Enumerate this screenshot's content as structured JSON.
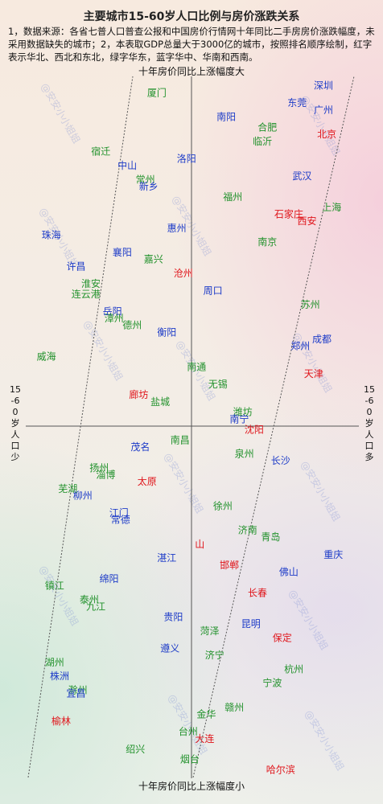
{
  "title": "主要城市15-60岁人口比例与房价涨跌关系",
  "note": "1，数据来源：各省七普人口普查公报和中国房价行情网十年同比二手房房价涨跌幅度，未采用数据缺失的城市；2，本表取GDP总量大于3000亿的城市，按照排名顺序绘制，红字表示华北、西北和东北，绿字华东，蓝字华中、华南和西南。",
  "watermark": "@安安小小姐姐",
  "colors": {
    "north": "#e0151b",
    "east": "#23922d",
    "central_south_west": "#1e3cc8",
    "axis": "#555555"
  },
  "chart_data": {
    "type": "scatter",
    "title": "主要城市15-60岁人口比例与房价涨跌关系",
    "xlabel_left": "15-60岁人口少",
    "xlabel_right": "15-60岁人口多",
    "ylabel_top": "十年房价同比上涨幅度大",
    "ylabel_bottom": "十年房价同比上涨幅度小",
    "axis_ticks": "none",
    "grid": false,
    "x_range": [
      -1,
      1
    ],
    "y_range": [
      -1,
      1
    ],
    "groups": {
      "north": "华北、西北和东北",
      "east": "华东",
      "central_south_west": "华中、华南和西南"
    },
    "points": [
      {
        "city": "深圳",
        "group": "central_south_west",
        "x": 0.8,
        "y": 0.98
      },
      {
        "city": "厦门",
        "group": "east",
        "x": -0.21,
        "y": 0.96
      },
      {
        "city": "东莞",
        "group": "central_south_west",
        "x": 0.64,
        "y": 0.93
      },
      {
        "city": "广州",
        "group": "central_south_west",
        "x": 0.8,
        "y": 0.91
      },
      {
        "city": "南阳",
        "group": "central_south_west",
        "x": 0.21,
        "y": 0.89
      },
      {
        "city": "合肥",
        "group": "east",
        "x": 0.46,
        "y": 0.86
      },
      {
        "city": "北京",
        "group": "north",
        "x": 0.82,
        "y": 0.84
      },
      {
        "city": "临沂",
        "group": "east",
        "x": 0.43,
        "y": 0.82
      },
      {
        "city": "宿迁",
        "group": "east",
        "x": -0.55,
        "y": 0.79
      },
      {
        "city": "洛阳",
        "group": "central_south_west",
        "x": -0.03,
        "y": 0.77
      },
      {
        "city": "中山",
        "group": "central_south_west",
        "x": -0.39,
        "y": 0.75
      },
      {
        "city": "武汉",
        "group": "central_south_west",
        "x": 0.67,
        "y": 0.72
      },
      {
        "city": "常州",
        "group": "east",
        "x": -0.28,
        "y": 0.71
      },
      {
        "city": "新乡",
        "group": "central_south_west",
        "x": -0.26,
        "y": 0.69
      },
      {
        "city": "福州",
        "group": "east",
        "x": 0.25,
        "y": 0.66
      },
      {
        "city": "上海",
        "group": "east",
        "x": 0.85,
        "y": 0.63
      },
      {
        "city": "石家庄",
        "group": "north",
        "x": 0.59,
        "y": 0.61
      },
      {
        "city": "西安",
        "group": "north",
        "x": 0.7,
        "y": 0.59
      },
      {
        "city": "惠州",
        "group": "central_south_west",
        "x": -0.09,
        "y": 0.57
      },
      {
        "city": "珠海",
        "group": "central_south_west",
        "x": -0.85,
        "y": 0.55
      },
      {
        "city": "南京",
        "group": "east",
        "x": 0.46,
        "y": 0.53
      },
      {
        "city": "襄阳",
        "group": "central_south_west",
        "x": -0.42,
        "y": 0.5
      },
      {
        "city": "嘉兴",
        "group": "east",
        "x": -0.23,
        "y": 0.48
      },
      {
        "city": "许昌",
        "group": "central_south_west",
        "x": -0.7,
        "y": 0.46
      },
      {
        "city": "沧州",
        "group": "north",
        "x": -0.05,
        "y": 0.44
      },
      {
        "city": "淮安",
        "group": "east",
        "x": -0.61,
        "y": 0.41
      },
      {
        "city": "周口",
        "group": "central_south_west",
        "x": 0.13,
        "y": 0.39
      },
      {
        "city": "连云港",
        "group": "east",
        "x": -0.64,
        "y": 0.38
      },
      {
        "city": "苏州",
        "group": "east",
        "x": 0.72,
        "y": 0.35
      },
      {
        "city": "岳阳",
        "group": "central_south_west",
        "x": -0.48,
        "y": 0.33
      },
      {
        "city": "漳州",
        "group": "east",
        "x": -0.47,
        "y": 0.31
      },
      {
        "city": "德州",
        "group": "east",
        "x": -0.36,
        "y": 0.29
      },
      {
        "city": "衡阳",
        "group": "central_south_west",
        "x": -0.15,
        "y": 0.27
      },
      {
        "city": "成都",
        "group": "central_south_west",
        "x": 0.79,
        "y": 0.25
      },
      {
        "city": "郑州",
        "group": "central_south_west",
        "x": 0.66,
        "y": 0.23
      },
      {
        "city": "威海",
        "group": "east",
        "x": -0.88,
        "y": 0.2
      },
      {
        "city": "南通",
        "group": "east",
        "x": 0.03,
        "y": 0.17
      },
      {
        "city": "天津",
        "group": "north",
        "x": 0.74,
        "y": 0.15
      },
      {
        "city": "无锡",
        "group": "east",
        "x": 0.16,
        "y": 0.12
      },
      {
        "city": "廊坊",
        "group": "north",
        "x": -0.32,
        "y": 0.09
      },
      {
        "city": "盐城",
        "group": "east",
        "x": -0.19,
        "y": 0.07
      },
      {
        "city": "潍坊",
        "group": "east",
        "x": 0.31,
        "y": 0.04
      },
      {
        "city": "南宁",
        "group": "central_south_west",
        "x": 0.29,
        "y": 0.02
      },
      {
        "city": "沈阳",
        "group": "north",
        "x": 0.38,
        "y": -0.01
      },
      {
        "city": "南昌",
        "group": "east",
        "x": -0.07,
        "y": -0.04
      },
      {
        "city": "茂名",
        "group": "central_south_west",
        "x": -0.31,
        "y": -0.06
      },
      {
        "city": "泉州",
        "group": "east",
        "x": 0.32,
        "y": -0.08
      },
      {
        "city": "长沙",
        "group": "central_south_west",
        "x": 0.54,
        "y": -0.1
      },
      {
        "city": "扬州",
        "group": "east",
        "x": -0.56,
        "y": -0.12
      },
      {
        "city": "淄博",
        "group": "east",
        "x": -0.52,
        "y": -0.14
      },
      {
        "city": "太原",
        "group": "north",
        "x": -0.27,
        "y": -0.16
      },
      {
        "city": "芜湖",
        "group": "east",
        "x": -0.75,
        "y": -0.18
      },
      {
        "city": "柳州",
        "group": "central_south_west",
        "x": -0.66,
        "y": -0.2
      },
      {
        "city": "徐州",
        "group": "east",
        "x": 0.19,
        "y": -0.23
      },
      {
        "city": "江门",
        "group": "central_south_west",
        "x": -0.44,
        "y": -0.25
      },
      {
        "city": "常德",
        "group": "central_south_west",
        "x": -0.43,
        "y": -0.27
      },
      {
        "city": "济南",
        "group": "east",
        "x": 0.34,
        "y": -0.3
      },
      {
        "city": "青岛",
        "group": "east",
        "x": 0.48,
        "y": -0.32
      },
      {
        "city": "山",
        "group": "north",
        "x": 0.05,
        "y": -0.34
      },
      {
        "city": "重庆",
        "group": "central_south_west",
        "x": 0.86,
        "y": -0.37
      },
      {
        "city": "湛江",
        "group": "central_south_west",
        "x": -0.15,
        "y": -0.38
      },
      {
        "city": "邯郸",
        "group": "north",
        "x": 0.23,
        "y": -0.4
      },
      {
        "city": "佛山",
        "group": "central_south_west",
        "x": 0.59,
        "y": -0.42
      },
      {
        "city": "绵阳",
        "group": "central_south_west",
        "x": -0.5,
        "y": -0.44
      },
      {
        "city": "镇江",
        "group": "east",
        "x": -0.83,
        "y": -0.46
      },
      {
        "city": "长春",
        "group": "north",
        "x": 0.4,
        "y": -0.48
      },
      {
        "city": "泰州",
        "group": "east",
        "x": -0.62,
        "y": -0.5
      },
      {
        "city": "九江",
        "group": "east",
        "x": -0.58,
        "y": -0.52
      },
      {
        "city": "贵阳",
        "group": "central_south_west",
        "x": -0.11,
        "y": -0.55
      },
      {
        "city": "昆明",
        "group": "central_south_west",
        "x": 0.36,
        "y": -0.57
      },
      {
        "city": "菏泽",
        "group": "east",
        "x": 0.11,
        "y": -0.59
      },
      {
        "city": "保定",
        "group": "north",
        "x": 0.55,
        "y": -0.61
      },
      {
        "city": "遵义",
        "group": "central_south_west",
        "x": -0.13,
        "y": -0.64
      },
      {
        "city": "济宁",
        "group": "east",
        "x": 0.14,
        "y": -0.66
      },
      {
        "city": "湖州",
        "group": "east",
        "x": -0.83,
        "y": -0.68
      },
      {
        "city": "杭州",
        "group": "east",
        "x": 0.62,
        "y": -0.7
      },
      {
        "city": "株洲",
        "group": "central_south_west",
        "x": -0.8,
        "y": -0.72
      },
      {
        "city": "宁波",
        "group": "east",
        "x": 0.49,
        "y": -0.74
      },
      {
        "city": "滁州",
        "group": "east",
        "x": -0.69,
        "y": -0.76
      },
      {
        "city": "宜昌",
        "group": "central_south_west",
        "x": -0.7,
        "y": -0.77
      },
      {
        "city": "金华",
        "group": "east",
        "x": 0.09,
        "y": -0.83
      },
      {
        "city": "赣州",
        "group": "east",
        "x": 0.26,
        "y": -0.81
      },
      {
        "city": "榆林",
        "group": "north",
        "x": -0.79,
        "y": -0.85
      },
      {
        "city": "台州",
        "group": "east",
        "x": -0.02,
        "y": -0.88
      },
      {
        "city": "大连",
        "group": "north",
        "x": 0.08,
        "y": -0.9
      },
      {
        "city": "绍兴",
        "group": "east",
        "x": -0.34,
        "y": -0.93
      },
      {
        "city": "烟台",
        "group": "east",
        "x": -0.01,
        "y": -0.96
      },
      {
        "city": "哈尔滨",
        "group": "north",
        "x": 0.54,
        "y": -0.99
      }
    ]
  }
}
